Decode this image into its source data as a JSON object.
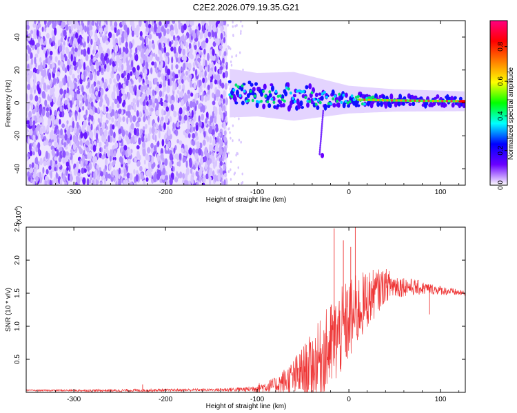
{
  "title": "C2E2.2026.079.19.35.G21",
  "chart_data": [
    {
      "type": "heatmap",
      "xlabel": "Height of straight line (km)",
      "ylabel": "Frequency (Hz)",
      "xlim": [
        -352,
        127
      ],
      "ylim": [
        -50,
        50
      ],
      "xticks": [
        -300,
        -200,
        -100,
        0,
        100
      ],
      "yticks": [
        -40,
        -20,
        0,
        20,
        40
      ],
      "noise_region_x": [
        -352,
        -133
      ],
      "signal_band": [
        {
          "x": -130,
          "f_center": 6,
          "f_halfwidth": 8
        },
        {
          "x": -100,
          "f_center": 5,
          "f_halfwidth": 7
        },
        {
          "x": -60,
          "f_center": 4,
          "f_halfwidth": 8
        },
        {
          "x": -30,
          "f_center": 3,
          "f_halfwidth": 6
        },
        {
          "x": 0,
          "f_center": 2,
          "f_halfwidth": 4
        },
        {
          "x": 50,
          "f_center": 1.5,
          "f_halfwidth": 3
        },
        {
          "x": 127,
          "f_center": 1,
          "f_halfwidth": 2.5
        }
      ],
      "spur": {
        "x": -28,
        "f_from": -5,
        "f_to": -32
      },
      "colorbar": {
        "label": "Normalized spectral amplitude",
        "range": [
          0,
          0.95
        ],
        "ticks": [
          "0.0",
          "0.2",
          "0.4",
          "0.6",
          "0.8"
        ],
        "tick_values": [
          0,
          0.2,
          0.4,
          0.6,
          0.8
        ],
        "stops": [
          "#ffffff",
          "#6a00ff",
          "#0000ff",
          "#00ffff",
          "#00ff00",
          "#ffff00",
          "#ff8000",
          "#ff0000",
          "#ff0080"
        ]
      }
    },
    {
      "type": "line",
      "xlabel": "Height of straight line (km)",
      "ylabel": "SNR (10 * v/v)",
      "y_scale_label": "(x10",
      "y_scale_exp": "4",
      "y_scale_suffix": ")",
      "xlim": [
        -352,
        127
      ],
      "ylim": [
        0,
        2.5
      ],
      "xticks": [
        -300,
        -200,
        -100,
        0,
        100
      ],
      "yticks": [
        0.5,
        1.0,
        1.5,
        2.0,
        2.5
      ],
      "ytick_labels": [
        "0.5",
        "1.0",
        "1.5",
        "2.0",
        "2.5"
      ],
      "color": "#ee3333",
      "envelope": [
        {
          "x": -352,
          "y": 0.03,
          "amp": 0.01
        },
        {
          "x": -250,
          "y": 0.03,
          "amp": 0.02
        },
        {
          "x": -150,
          "y": 0.04,
          "amp": 0.02
        },
        {
          "x": -110,
          "y": 0.05,
          "amp": 0.04
        },
        {
          "x": -80,
          "y": 0.12,
          "amp": 0.12
        },
        {
          "x": -60,
          "y": 0.25,
          "amp": 0.3
        },
        {
          "x": -40,
          "y": 0.45,
          "amp": 0.5
        },
        {
          "x": -20,
          "y": 0.75,
          "amp": 0.7
        },
        {
          "x": 0,
          "y": 1.15,
          "amp": 0.65
        },
        {
          "x": 20,
          "y": 1.45,
          "amp": 0.45
        },
        {
          "x": 40,
          "y": 1.65,
          "amp": 0.25
        },
        {
          "x": 60,
          "y": 1.62,
          "amp": 0.15
        },
        {
          "x": 90,
          "y": 1.57,
          "amp": 0.08
        },
        {
          "x": 127,
          "y": 1.5,
          "amp": 0.04
        }
      ],
      "spikes": [
        {
          "x": -16,
          "y": 2.48
        },
        {
          "x": 7,
          "y": 2.5
        },
        {
          "x": -6,
          "y": 2.3
        },
        {
          "x": 2,
          "y": 2.2
        },
        {
          "x": 88,
          "y": 1.18
        },
        {
          "x": -225,
          "y": 0.12
        }
      ]
    }
  ]
}
